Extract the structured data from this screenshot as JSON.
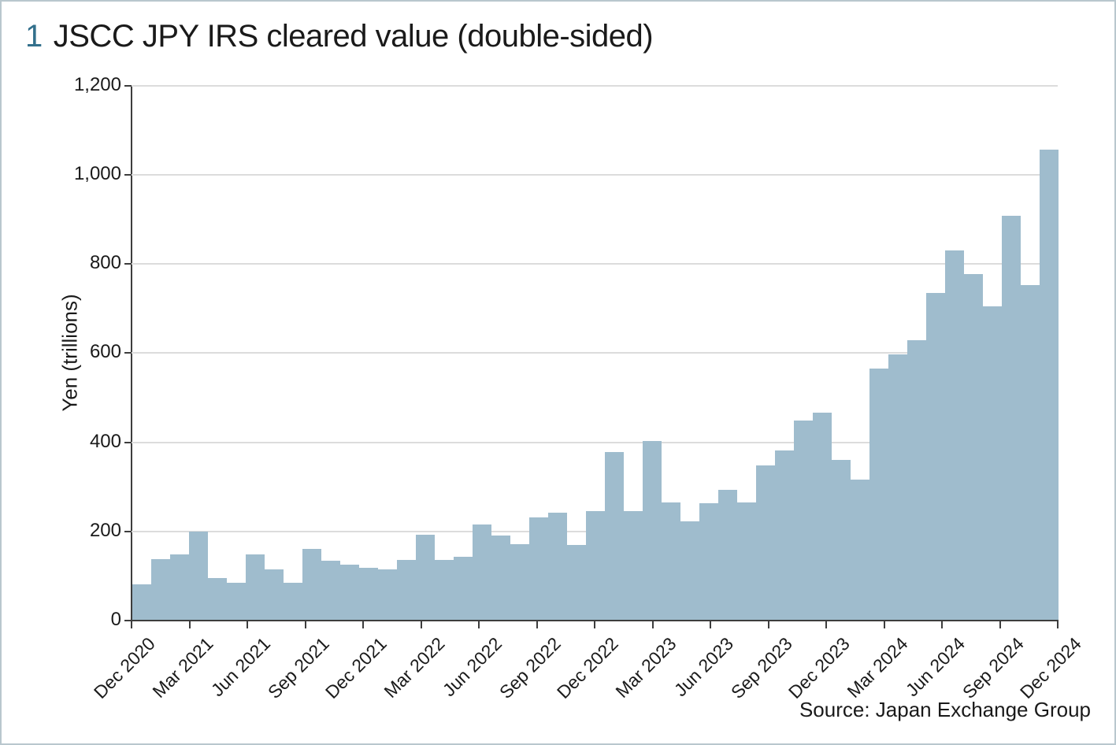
{
  "figure_number": "1",
  "title": "JSCC JPY IRS cleared value (double-sided)",
  "source": "Source: Japan Exchange Group",
  "colors": {
    "bar": "#9fbccd",
    "figure_number": "#33708c",
    "axis": "#3d3d3d",
    "gridline": "#dcdcdc",
    "text": "#1a1a1a",
    "border": "#b9c7ce"
  },
  "chart_data": {
    "type": "bar",
    "title": "JSCC JPY IRS cleared value (double-sided)",
    "xlabel": "",
    "ylabel": "Yen (trillions)",
    "ylim": [
      0,
      1200
    ],
    "ytick_interval": 200,
    "ytick_labels": [
      "0",
      "200",
      "400",
      "600",
      "800",
      "1,000",
      "1,200"
    ],
    "grid": true,
    "legend": false,
    "xtick_labels": [
      "Dec 2020",
      "Mar 2021",
      "Jun 2021",
      "Sep 2021",
      "Dec 2021",
      "Mar 2022",
      "Jun 2022",
      "Sep 2022",
      "Dec 2022",
      "Mar 2023",
      "Jun 2023",
      "Sep 2023",
      "Dec 2023",
      "Mar 2024",
      "Jun 2024",
      "Sep 2024",
      "Dec 2024"
    ],
    "x": [
      "Dec 2020",
      "Jan 2021",
      "Feb 2021",
      "Mar 2021",
      "Apr 2021",
      "May 2021",
      "Jun 2021",
      "Jul 2021",
      "Aug 2021",
      "Sep 2021",
      "Oct 2021",
      "Nov 2021",
      "Dec 2021",
      "Jan 2022",
      "Feb 2022",
      "Mar 2022",
      "Apr 2022",
      "May 2022",
      "Jun 2022",
      "Jul 2022",
      "Aug 2022",
      "Sep 2022",
      "Oct 2022",
      "Nov 2022",
      "Dec 2022",
      "Jan 2023",
      "Feb 2023",
      "Mar 2023",
      "Apr 2023",
      "May 2023",
      "Jun 2023",
      "Jul 2023",
      "Aug 2023",
      "Sep 2023",
      "Oct 2023",
      "Nov 2023",
      "Dec 2023",
      "Jan 2024",
      "Feb 2024",
      "Mar 2024",
      "Apr 2024",
      "May 2024",
      "Jun 2024",
      "Jul 2024",
      "Aug 2024",
      "Sep 2024",
      "Oct 2024",
      "Nov 2024",
      "Dec 2024"
    ],
    "values": [
      82,
      137,
      148,
      200,
      96,
      85,
      148,
      114,
      85,
      160,
      134,
      126,
      118,
      115,
      136,
      193,
      136,
      144,
      216,
      190,
      172,
      232,
      243,
      170,
      245,
      378,
      246,
      403,
      265,
      222,
      264,
      293,
      265,
      348,
      382,
      449,
      466,
      361,
      317,
      565,
      598,
      630,
      735,
      830,
      778,
      705,
      908,
      752,
      1057
    ]
  }
}
